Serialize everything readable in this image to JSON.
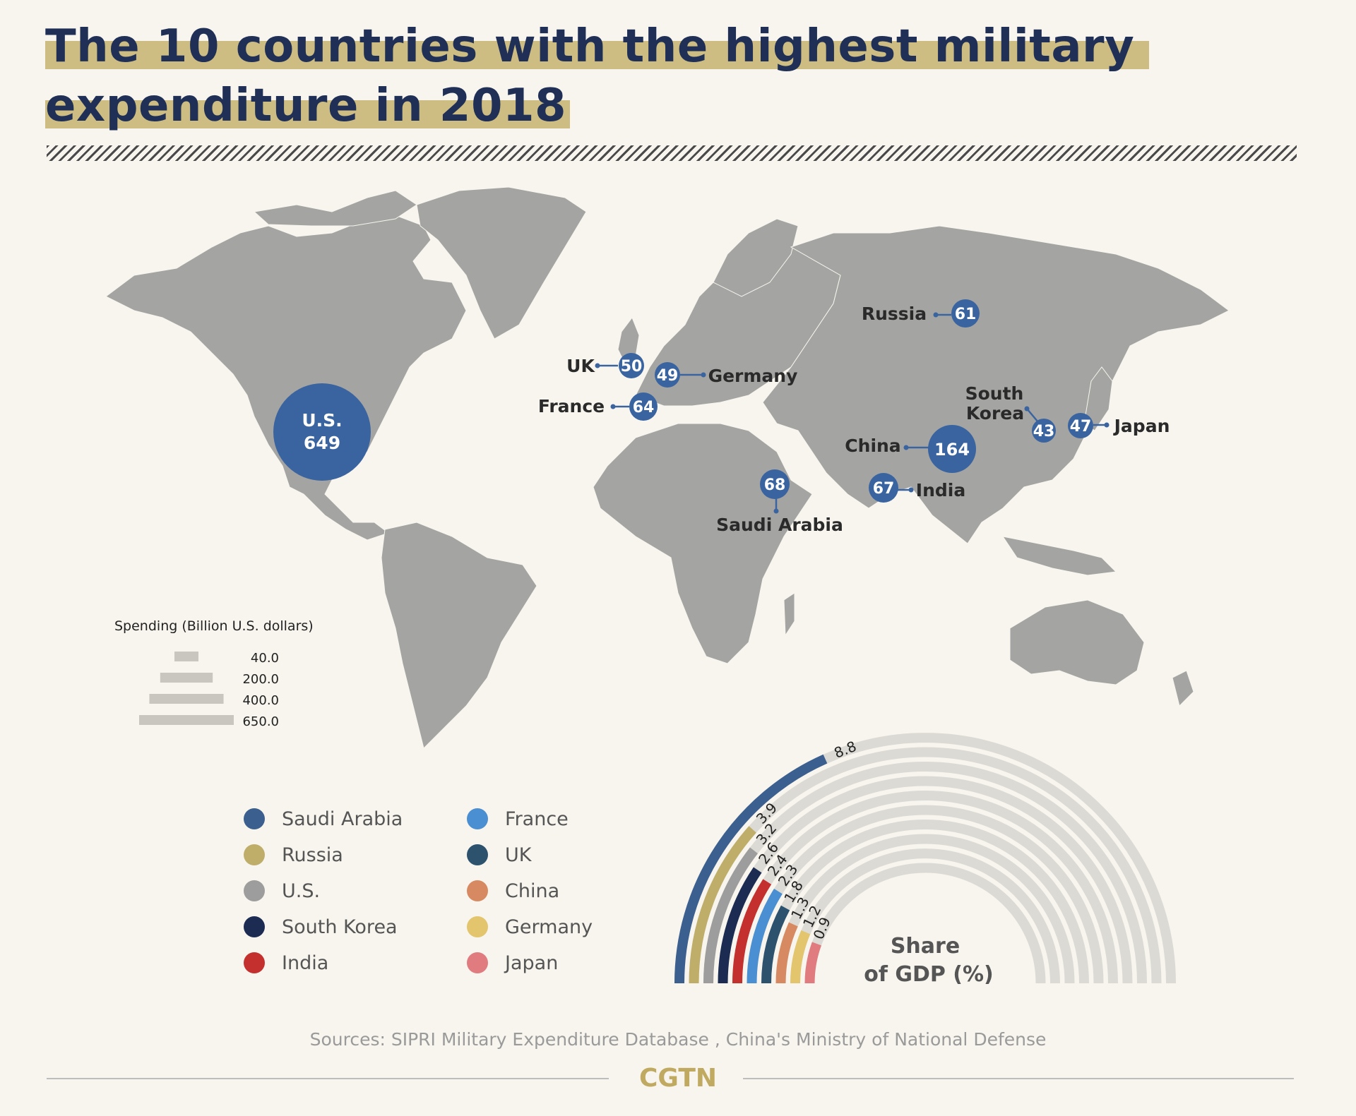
{
  "title": {
    "line1": "The 10 countries with the highest military",
    "line2": "expenditure in 2018"
  },
  "colors": {
    "bubble": "#3a64a0",
    "land": "#a4a4a2",
    "highlight": "#cdbd83",
    "title_text": "#1f2f55",
    "arc_track": "#dcdad5"
  },
  "chart_data": [
    {
      "type": "bubble-map",
      "size_legend": {
        "title": "Spending (Billion U.S. dollars)",
        "entries": [
          "40.0",
          "200.0",
          "400.0",
          "650.0"
        ],
        "values": [
          40,
          200,
          400,
          650
        ]
      },
      "points": [
        {
          "country": "U.S.",
          "value": 649
        },
        {
          "country": "China",
          "value": 164
        },
        {
          "country": "Saudi Arabia",
          "value": 68
        },
        {
          "country": "India",
          "value": 67
        },
        {
          "country": "France",
          "value": 64
        },
        {
          "country": "Russia",
          "value": 61
        },
        {
          "country": "UK",
          "value": 50
        },
        {
          "country": "Germany",
          "value": 49
        },
        {
          "country": "Japan",
          "value": 47
        },
        {
          "country": "South Korea",
          "value": 43
        }
      ]
    },
    {
      "type": "radial-bar",
      "title": "Share of GDP (%)",
      "title_lines": [
        "Share",
        "of GDP (%)"
      ],
      "max": 8.8,
      "series": [
        {
          "country": "Saudi Arabia",
          "value": 8.8,
          "label": "8.8",
          "color": "#3b5f8e"
        },
        {
          "country": "Russia",
          "value": 3.9,
          "label": "3.9",
          "color": "#bfae6a"
        },
        {
          "country": "U.S.",
          "value": 3.2,
          "label": "3.2",
          "color": "#9d9d9d"
        },
        {
          "country": "South Korea",
          "value": 2.6,
          "label": "2.6",
          "color": "#1c2b52"
        },
        {
          "country": "India",
          "value": 2.4,
          "label": "2.4",
          "color": "#c4302e"
        },
        {
          "country": "France",
          "value": 2.3,
          "label": "2.3",
          "color": "#4a8fd2"
        },
        {
          "country": "UK",
          "value": 1.8,
          "label": "1.8",
          "color": "#2d526e"
        },
        {
          "country": "China",
          "value": 1.3,
          "label": "1.3",
          "color": "#d78a61"
        },
        {
          "country": "Germany",
          "value": 1.2,
          "label": "1.2",
          "color": "#e2c56c"
        },
        {
          "country": "Japan",
          "value": 0.9,
          "label": "0.9",
          "color": "#e07b80"
        }
      ]
    }
  ],
  "legend": [
    {
      "label": "Saudi Arabia",
      "color": "#3b5f8e"
    },
    {
      "label": "Russia",
      "color": "#bfae6a"
    },
    {
      "label": "U.S.",
      "color": "#9d9d9d"
    },
    {
      "label": "South Korea",
      "color": "#1c2b52"
    },
    {
      "label": "India",
      "color": "#c4302e"
    },
    {
      "label": "France",
      "color": "#4a8fd2"
    },
    {
      "label": "UK",
      "color": "#2d526e"
    },
    {
      "label": "China",
      "color": "#d78a61"
    },
    {
      "label": "Germany",
      "color": "#e2c56c"
    },
    {
      "label": "Japan",
      "color": "#e07b80"
    }
  ],
  "sources": "Sources: SIPRI Military Expenditure Database , China's Ministry of National Defense",
  "brand": "CGTN"
}
